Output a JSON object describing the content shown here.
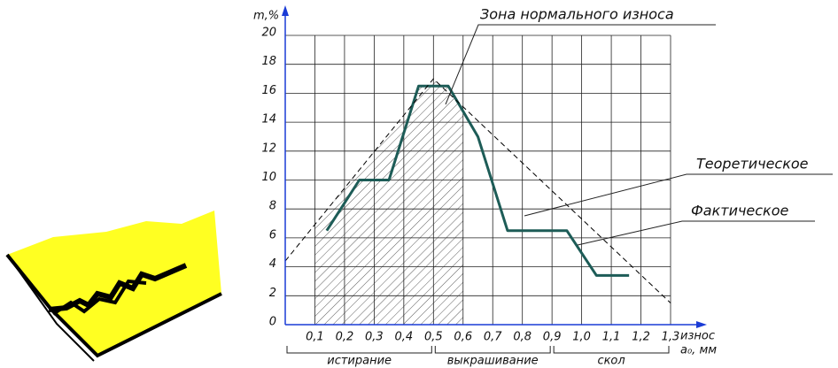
{
  "chart_data": {
    "type": "line",
    "y_label": "m,%",
    "x_label": [
      "износ",
      "a₀, мм"
    ],
    "xlim": [
      0,
      1.3
    ],
    "ylim": [
      0,
      20
    ],
    "xticks": [
      {
        "value": 0.1,
        "label": "0,1"
      },
      {
        "value": 0.2,
        "label": "0,2"
      },
      {
        "value": 0.3,
        "label": "0,3"
      },
      {
        "value": 0.4,
        "label": "0,4"
      },
      {
        "value": 0.5,
        "label": "0,5"
      },
      {
        "value": 0.6,
        "label": "0,6"
      },
      {
        "value": 0.7,
        "label": "0,7"
      },
      {
        "value": 0.8,
        "label": "0,8"
      },
      {
        "value": 0.9,
        "label": "0,9"
      },
      {
        "value": 1.0,
        "label": "1,0"
      },
      {
        "value": 1.1,
        "label": "1,1"
      },
      {
        "value": 1.2,
        "label": "1,2"
      },
      {
        "value": 1.3,
        "label": "1,3"
      }
    ],
    "yticks": [
      0,
      2,
      4,
      6,
      8,
      10,
      12,
      14,
      16,
      18,
      20
    ],
    "grid": true,
    "series": [
      {
        "name": "Фактическое",
        "color": "#1d5c57",
        "x": [
          0.14,
          0.25,
          0.35,
          0.45,
          0.55,
          0.65,
          0.75,
          0.95,
          1.05,
          1.16
        ],
        "values": [
          6.5,
          10,
          10,
          16.5,
          16.5,
          13,
          6.5,
          6.5,
          3.4,
          3.4
        ]
      },
      {
        "name": "Теоретическое",
        "color": "#000000",
        "dashed": true,
        "x": [
          0,
          0.5,
          1.3
        ],
        "values": [
          4.4,
          17,
          1.5
        ]
      }
    ],
    "zone": {
      "label": "Зона нормального износа",
      "x": [
        0.1,
        0.6
      ]
    },
    "wear_stages": [
      {
        "label": "истирание",
        "range": [
          0,
          0.5
        ]
      },
      {
        "label": "выкрашивание",
        "range": [
          0.5,
          0.9
        ]
      },
      {
        "label": "скол",
        "range": [
          0.9,
          1.3
        ]
      }
    ]
  }
}
